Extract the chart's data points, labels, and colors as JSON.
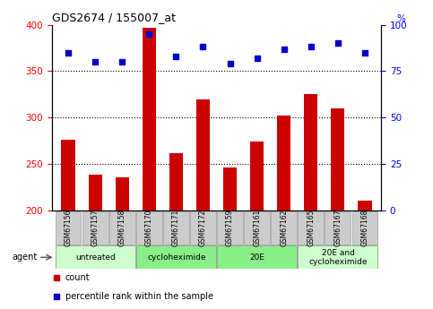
{
  "title": "GDS2674 / 155007_at",
  "samples": [
    "GSM67156",
    "GSM67157",
    "GSM67158",
    "GSM67170",
    "GSM67171",
    "GSM67172",
    "GSM67159",
    "GSM67161",
    "GSM67162",
    "GSM67165",
    "GSM67167",
    "GSM67168"
  ],
  "bar_values": [
    276,
    238,
    235,
    397,
    261,
    319,
    246,
    274,
    302,
    325,
    310,
    210
  ],
  "dot_values_pct": [
    85,
    80,
    80,
    95,
    83,
    88,
    79,
    82,
    87,
    88,
    90,
    85
  ],
  "bar_color": "#cc0000",
  "dot_color": "#0000cc",
  "ylim_left": [
    200,
    400
  ],
  "ylim_right": [
    0,
    100
  ],
  "yticks_left": [
    200,
    250,
    300,
    350,
    400
  ],
  "yticks_right": [
    0,
    25,
    50,
    75,
    100
  ],
  "groups": [
    {
      "label": "untreated",
      "start": 0,
      "end": 3
    },
    {
      "label": "cycloheximide",
      "start": 3,
      "end": 6
    },
    {
      "label": "20E",
      "start": 6,
      "end": 9
    },
    {
      "label": "20E and\ncycloheximide",
      "start": 9,
      "end": 12
    }
  ],
  "group_colors": [
    "#ccffcc",
    "#88ee88",
    "#88ee88",
    "#ccffcc"
  ],
  "tick_bg_color": "#cccccc",
  "agent_label": "agent",
  "legend_count_label": "count",
  "legend_pct_label": "percentile rank within the sample",
  "background_color": "#ffffff"
}
